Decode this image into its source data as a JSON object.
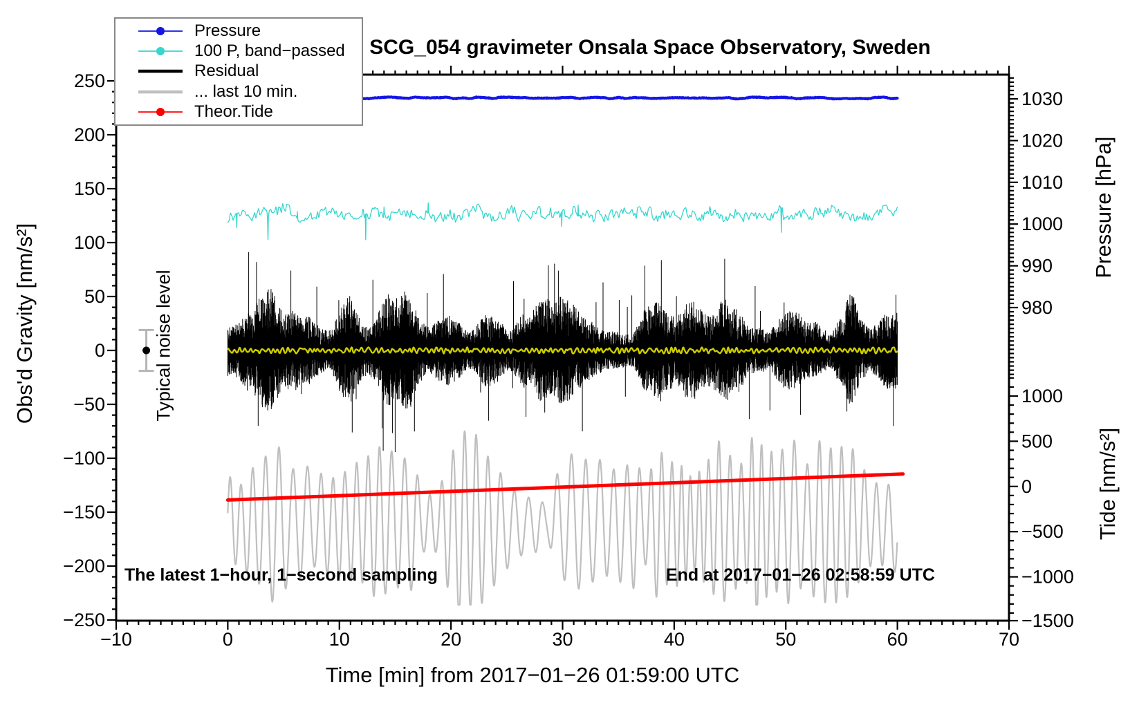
{
  "title": "SCG_054 gravimeter Onsala Space Observatory, Sweden",
  "annotations": {
    "sampling_note": "The latest 1−hour, 1−second sampling",
    "end_note": "End at 2017−01−26 02:58:59 UTC",
    "noise_level_label": "Typical noise level"
  },
  "legend": {
    "items": [
      {
        "label": "Pressure",
        "color": "#1515e6",
        "marker": "line-dot",
        "thick": false
      },
      {
        "label": "100 P, band−passed",
        "color": "#35d6ce",
        "marker": "line-dot",
        "thick": false
      },
      {
        "label": "Residual",
        "color": "#000000",
        "marker": "line",
        "thick": true
      },
      {
        "label": "... last 10 min.",
        "color": "#bfbfbf",
        "marker": "line",
        "thick": true
      },
      {
        "label": "Theor.Tide",
        "color": "#ff0000",
        "marker": "line-dot",
        "thick": false
      }
    ]
  },
  "axes": {
    "x": {
      "title": "Time [min] from 2017−01−26 01:59:00 UTC",
      "min": -10,
      "max": 70,
      "major_ticks": [
        -10,
        0,
        10,
        20,
        30,
        40,
        50,
        60,
        70
      ],
      "minor_step": 1
    },
    "gravity": {
      "title": "Obs'd Gravity [nm/s²]",
      "min": -250,
      "max": 250,
      "major_ticks": [
        250,
        200,
        150,
        100,
        50,
        0,
        -50,
        -100,
        -150,
        -200,
        -250
      ],
      "minor_step": 10
    },
    "pressure": {
      "title": "Pressure [hPa]",
      "major_ticks": [
        1030,
        1020,
        1010,
        1000,
        990,
        980
      ],
      "minor_step": 1
    },
    "tide": {
      "title": "Tide [nm/s²]",
      "major_ticks": [
        1000,
        500,
        0,
        -500,
        -1000,
        -1500
      ],
      "minor_step": 100
    }
  },
  "chart_data": {
    "type": "line",
    "x_unit": "min",
    "x_range": [
      0,
      60
    ],
    "series": [
      {
        "id": "pressure",
        "legend": "Pressure",
        "axis": "pressure",
        "color": "#1515e6",
        "style": "flat-noisy",
        "mean_hpa": 1030.2,
        "noise_hpa": 0.3,
        "width": 4
      },
      {
        "id": "band_passed",
        "legend": "100 P, band−passed",
        "axis": "gravity",
        "color": "#35d6ce",
        "style": "noisy",
        "center": 127,
        "typ_amp": 9,
        "spike_amp": 24,
        "width": 1.3
      },
      {
        "id": "residual",
        "legend": "Residual",
        "axis": "gravity",
        "color": "#000000",
        "style": "noise-band",
        "center": 0,
        "envelope_min": 14,
        "envelope_max": 58,
        "spike_max": 90,
        "width": 1
      },
      {
        "id": "residual_smoothed",
        "legend": "",
        "axis": "gravity",
        "color": "#cdcd00",
        "style": "small-wiggle",
        "center": 0,
        "typ_amp": 2.5,
        "width": 2.4
      },
      {
        "id": "last_10_min",
        "legend": "... last 10 min.",
        "axis": "gravity",
        "color": "#bfbfbf",
        "style": "oscillation",
        "center": -160,
        "amp_min": 20,
        "amp_max": 96,
        "period_min": 0.75,
        "width": 2.2
      },
      {
        "id": "theor_tide",
        "legend": "Theor.Tide",
        "axis": "tide",
        "color": "#ff0000",
        "style": "trend",
        "start_tide": -150,
        "end_tide": 138,
        "t_start": 0,
        "t_end": 60.5,
        "width": 5
      }
    ],
    "noise_marker": {
      "t": -7.3,
      "value": 0,
      "error": 19
    }
  }
}
